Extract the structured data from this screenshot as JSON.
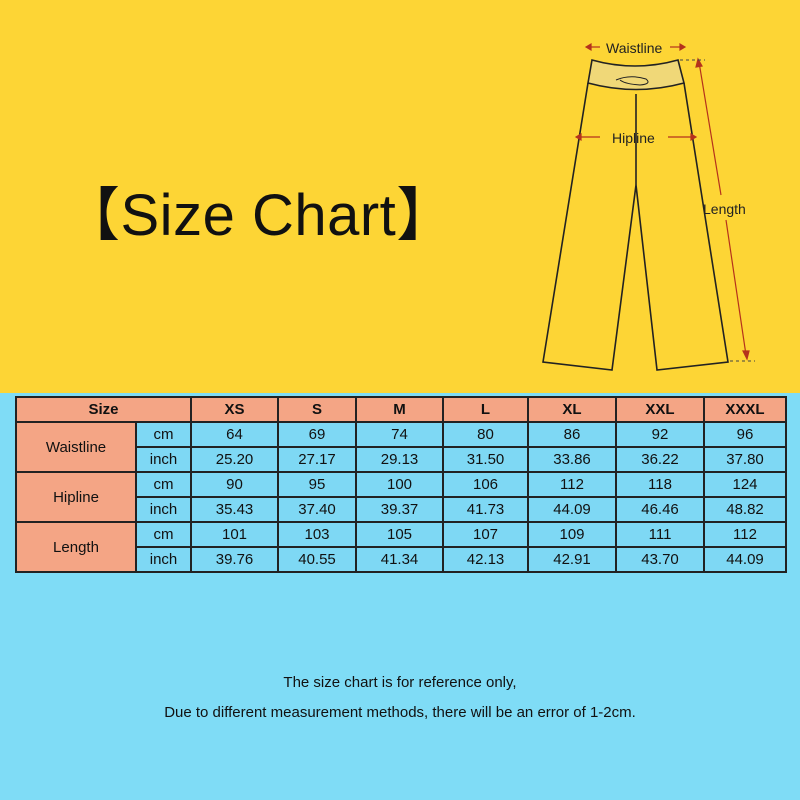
{
  "title": "【Size Chart】",
  "diagram": {
    "waistline": "Waistline",
    "hipline": "Hipline",
    "length": "Length"
  },
  "table": {
    "size_label": "Size",
    "sizes": [
      "XS",
      "S",
      "M",
      "L",
      "XL",
      "XXL",
      "XXXL"
    ],
    "rows": [
      {
        "measure": "Waistline",
        "cm_label": "cm",
        "inch_label": "inch",
        "cm": [
          "64",
          "69",
          "74",
          "80",
          "86",
          "92",
          "96"
        ],
        "inch": [
          "25.20",
          "27.17",
          "29.13",
          "31.50",
          "33.86",
          "36.22",
          "37.80"
        ]
      },
      {
        "measure": "Hipline",
        "cm_label": "cm",
        "inch_label": "inch",
        "cm": [
          "90",
          "95",
          "100",
          "106",
          "112",
          "118",
          "124"
        ],
        "inch": [
          "35.43",
          "37.40",
          "39.37",
          "41.73",
          "44.09",
          "46.46",
          "48.82"
        ]
      },
      {
        "measure": "Length",
        "cm_label": "cm",
        "inch_label": "inch",
        "cm": [
          "101",
          "103",
          "105",
          "107",
          "109",
          "111",
          "112"
        ],
        "inch": [
          "39.76",
          "40.55",
          "41.34",
          "42.13",
          "42.91",
          "43.70",
          "44.09"
        ]
      }
    ]
  },
  "notes": {
    "line1": "The size chart is for reference only,",
    "line2": "Due to different measurement methods, there will be an error of 1-2cm."
  },
  "colors": {
    "top_bg": "#fdd535",
    "bottom_bg": "#7fdcf6",
    "header_cell": "#f4a585",
    "value_cell": "#7ed8f4",
    "arrow": "#b5321c"
  }
}
